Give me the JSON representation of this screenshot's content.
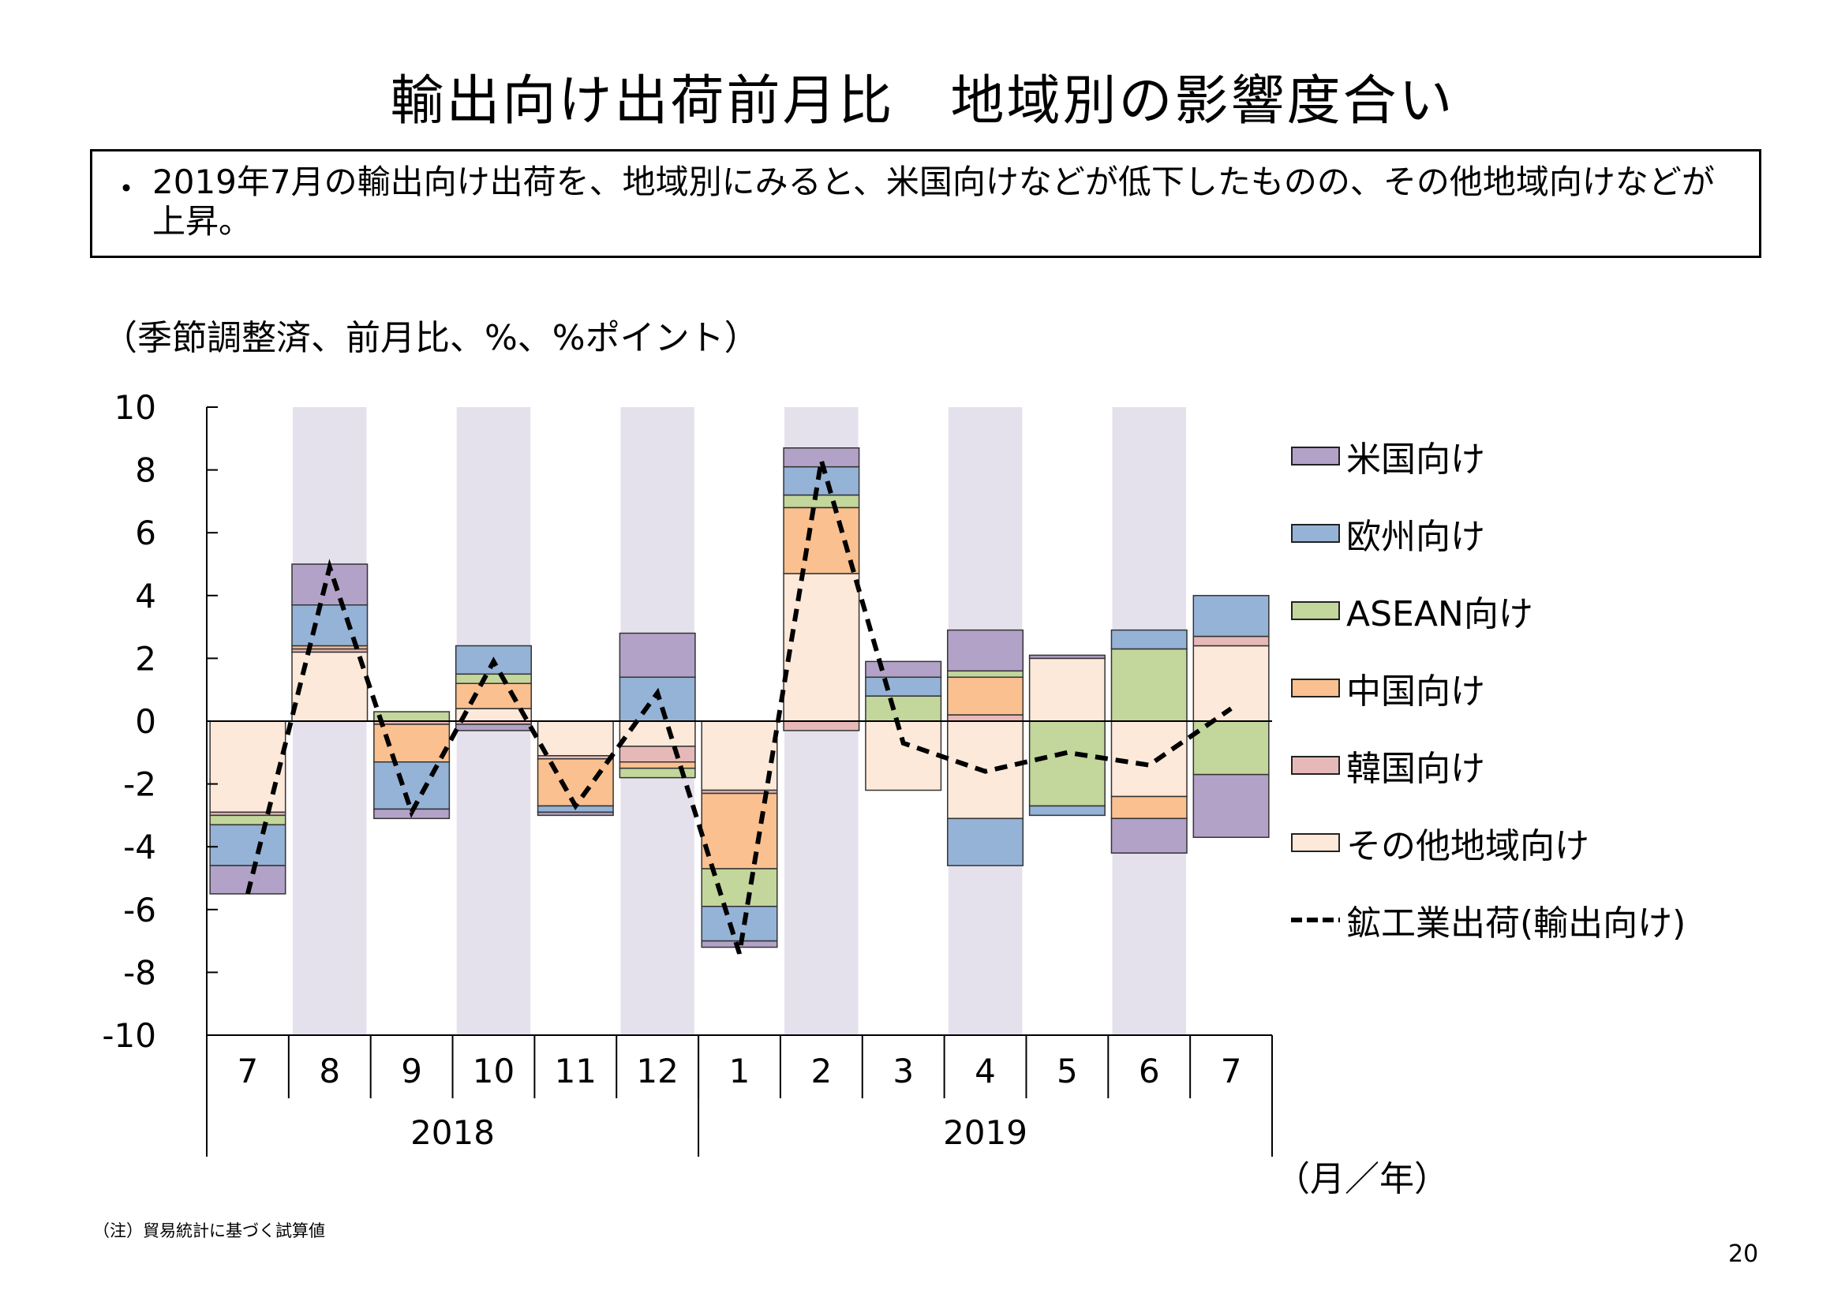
{
  "title": "輸出向け出荷前月比　地域別の影響度合い",
  "summary": {
    "bullet": "・",
    "text": "2019年7月の輸出向け出荷を、地域別にみると、米国向けなどが低下したものの、その他地域向けなどが上昇。"
  },
  "unit_label": "（季節調整済、前月比、%、%ポイント）",
  "x_unit_label": "（月／年）",
  "note": "（注）貿易統計に基づく試算値",
  "page_number": "20",
  "chart_data": {
    "type": "bar",
    "stacked": true,
    "categories": [
      "7",
      "8",
      "9",
      "10",
      "11",
      "12",
      "1",
      "2",
      "3",
      "4",
      "5",
      "6",
      "7"
    ],
    "year_groups": [
      {
        "label": "2018",
        "start": 0,
        "end": 5
      },
      {
        "label": "2019",
        "start": 6,
        "end": 12
      }
    ],
    "ylim": [
      -10,
      10
    ],
    "yticks": [
      10,
      8,
      6,
      4,
      2,
      0,
      -2,
      -4,
      -6,
      -8,
      -10
    ],
    "shaded_categories": [
      1,
      3,
      5,
      7,
      9,
      11
    ],
    "shade_color": "#e4e0ec",
    "series": [
      {
        "name": "その他地域向け",
        "color": "#fde9d9",
        "values": [
          -2.9,
          2.2,
          0.0,
          0.4,
          -1.1,
          -0.8,
          -2.2,
          4.7,
          -2.2,
          -3.1,
          2.0,
          -2.4,
          2.4
        ]
      },
      {
        "name": "韓国向け",
        "color": "#e6b9b8",
        "values": [
          -0.1,
          0.1,
          -0.1,
          -0.1,
          -0.1,
          -0.5,
          -0.1,
          -0.3,
          0.0,
          0.2,
          0.0,
          0.0,
          0.3
        ]
      },
      {
        "name": "中国向け",
        "color": "#fac090",
        "values": [
          0.0,
          0.1,
          -1.2,
          0.8,
          -1.5,
          -0.2,
          -2.4,
          2.1,
          0.0,
          1.2,
          0.0,
          -0.7,
          0.0
        ]
      },
      {
        "name": "ASEAN向け",
        "color": "#c3d69b",
        "values": [
          -0.3,
          0.0,
          0.3,
          0.3,
          0.0,
          -0.3,
          -1.2,
          0.4,
          0.8,
          0.2,
          -2.7,
          2.3,
          -1.7
        ]
      },
      {
        "name": "欧州向け",
        "color": "#95b3d7",
        "values": [
          -1.3,
          1.3,
          -1.5,
          0.9,
          -0.2,
          1.4,
          -1.1,
          0.9,
          0.6,
          -1.5,
          -0.3,
          0.6,
          1.3
        ]
      },
      {
        "name": "米国向け",
        "color": "#b3a2c7",
        "values": [
          -0.9,
          1.3,
          -0.3,
          -0.2,
          -0.1,
          1.4,
          -0.2,
          0.6,
          0.5,
          1.3,
          0.1,
          -1.1,
          -2.0
        ]
      }
    ],
    "line": {
      "name": "鉱工業出荷(輸出向け)",
      "style": "dashed",
      "color": "#000000",
      "values": [
        -5.5,
        4.9,
        -2.9,
        1.9,
        -2.7,
        0.9,
        -7.4,
        8.3,
        -0.7,
        -1.6,
        -1.0,
        -1.4,
        0.4
      ]
    },
    "legend_position": "right",
    "legend_order": [
      "米国向け",
      "欧州向け",
      "ASEAN向け",
      "中国向け",
      "韓国向け",
      "その他地域向け",
      "鉱工業出荷(輸出向け)"
    ]
  }
}
